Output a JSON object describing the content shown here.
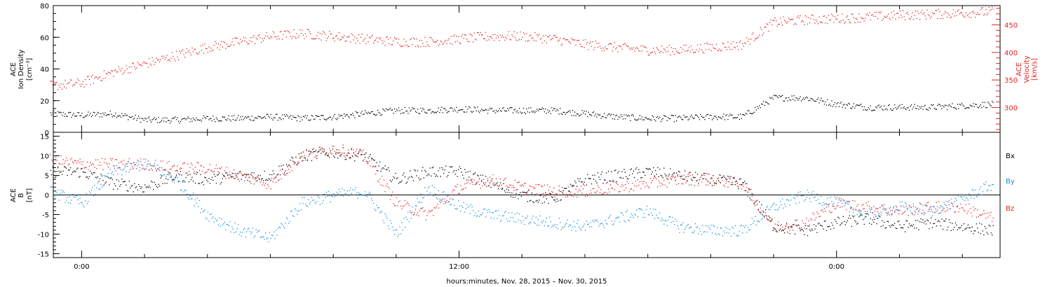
{
  "chart_data": [
    {
      "type": "scatter",
      "ylabel": [
        "ACE",
        "Ion Density",
        "[cm⁻³]"
      ],
      "ylim": [
        0,
        80
      ],
      "yticks": [
        0,
        20,
        40,
        60,
        80
      ],
      "y2label": [
        "ACE",
        "Velocity",
        "[km/s]"
      ],
      "y2lim": [
        255,
        485
      ],
      "y2ticks": [
        300,
        350,
        400,
        450
      ],
      "series": [
        {
          "name": "Ion Density",
          "color": "#000000",
          "axis": "left",
          "x": [
            -1.0,
            0.0,
            1.0,
            2.0,
            3.0,
            4.0,
            5.0,
            6.0,
            7.0,
            8.0,
            9.0,
            10.0,
            11.0,
            12.0,
            13.0,
            14.0,
            15.0,
            16.0,
            17.0,
            18.0,
            19.0,
            20.0,
            21.0,
            22.0,
            23.0,
            24.0,
            25.0,
            26.0,
            27.0,
            28.0,
            29.0
          ],
          "y": [
            12,
            11,
            12,
            8,
            8,
            9,
            9,
            10,
            9,
            10,
            12,
            14,
            14,
            15,
            14,
            14,
            14,
            12,
            10,
            9,
            9,
            10,
            10,
            22,
            22,
            18,
            16,
            16,
            16,
            17,
            18
          ]
        },
        {
          "name": "Velocity",
          "color": "#e32222",
          "axis": "right",
          "x": [
            -1.0,
            0.0,
            1.0,
            2.0,
            3.0,
            4.0,
            5.0,
            6.0,
            7.0,
            8.0,
            9.0,
            10.0,
            11.0,
            12.0,
            13.0,
            14.0,
            15.0,
            16.0,
            17.0,
            18.0,
            19.0,
            20.0,
            21.0,
            22.0,
            23.0,
            24.0,
            25.0,
            26.0,
            27.0,
            28.0,
            29.0
          ],
          "y": [
            340,
            345,
            365,
            380,
            395,
            410,
            420,
            430,
            435,
            430,
            425,
            420,
            420,
            425,
            430,
            430,
            425,
            415,
            410,
            405,
            405,
            410,
            415,
            455,
            460,
            462,
            465,
            468,
            470,
            472,
            475
          ]
        }
      ]
    },
    {
      "type": "scatter",
      "ylabel": [
        "ACE",
        "B",
        "[nT]"
      ],
      "ylim": [
        -16,
        16
      ],
      "yticks": [
        -15,
        -10,
        -5,
        0,
        5,
        10,
        15
      ],
      "zero_line": true,
      "series": [
        {
          "name": "Bx",
          "color": "#000000",
          "x": [
            -1.0,
            0.0,
            1.0,
            2.0,
            3.0,
            4.0,
            5.0,
            6.0,
            7.0,
            8.0,
            9.0,
            10.0,
            11.0,
            12.0,
            13.0,
            14.0,
            15.0,
            16.0,
            17.0,
            18.0,
            19.0,
            20.0,
            21.0,
            22.0,
            23.0,
            24.0,
            25.0,
            26.0,
            27.0,
            28.0,
            29.0
          ],
          "y": [
            6,
            6,
            3,
            2,
            5,
            4,
            5,
            5,
            10,
            11,
            10,
            4,
            6,
            6,
            3,
            0,
            -1,
            4,
            5,
            6,
            5,
            4,
            3,
            -8,
            -9,
            -7,
            -6,
            -8,
            -7,
            -8,
            -9
          ]
        },
        {
          "name": "By",
          "color": "#1a8fe0",
          "x": [
            -1.0,
            0.0,
            1.0,
            2.0,
            3.0,
            4.0,
            5.0,
            6.0,
            7.0,
            8.0,
            9.0,
            10.0,
            11.0,
            12.0,
            13.0,
            14.0,
            15.0,
            16.0,
            17.0,
            18.0,
            19.0,
            20.0,
            21.0,
            22.0,
            23.0,
            24.0,
            25.0,
            26.0,
            27.0,
            28.0,
            29.0
          ],
          "y": [
            1,
            -2,
            6,
            8,
            4,
            -5,
            -9,
            -11,
            -2,
            0,
            1,
            -10,
            2,
            -3,
            -5,
            -6,
            -7,
            -8,
            -6,
            -4,
            -8,
            -9,
            -9,
            -3,
            0,
            -2,
            -5,
            -3,
            -4,
            -1,
            3
          ]
        },
        {
          "name": "Bz",
          "color": "#e32222",
          "x": [
            -1.0,
            0.0,
            1.0,
            2.0,
            3.0,
            4.0,
            5.0,
            6.0,
            7.0,
            8.0,
            9.0,
            10.0,
            11.0,
            12.0,
            13.0,
            14.0,
            15.0,
            16.0,
            17.0,
            18.0,
            19.0,
            20.0,
            21.0,
            22.0,
            23.0,
            24.0,
            25.0,
            26.0,
            27.0,
            28.0,
            29.0
          ],
          "y": [
            9,
            8,
            8,
            8,
            7,
            7,
            5,
            3,
            10,
            12,
            10,
            -2,
            -5,
            2,
            4,
            2,
            1,
            1,
            2,
            3,
            4,
            4,
            3,
            -8,
            -7,
            -2,
            -3,
            -4,
            -3,
            -3,
            -6
          ]
        }
      ],
      "legend": [
        "Bx",
        "By",
        "Bz"
      ],
      "legend_placement": "right"
    }
  ],
  "x_axis": {
    "label": "hours:minutes, Nov. 28, 2015 – Nov. 30, 2015",
    "ticks": [
      {
        "value": 0,
        "label": "0:00"
      },
      {
        "value": 12,
        "label": "12:00"
      },
      {
        "value": 24,
        "label": "0:00"
      }
    ],
    "xlim": [
      -0.9,
      29.2
    ]
  },
  "colors": {
    "black": "#000000",
    "red": "#e32222",
    "blue": "#1a8fe0"
  }
}
